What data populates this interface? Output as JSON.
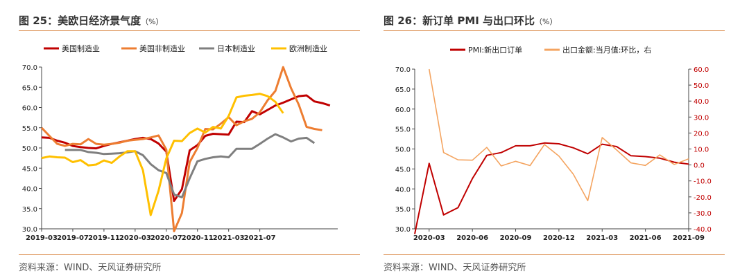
{
  "figures": [
    {
      "title": "图 25：美欧日经济景气度",
      "unit": "（%）",
      "source": "资料来源：WIND、天风证券研究所"
    },
    {
      "title": "图 26：新订单 PMI 与出口环比",
      "unit": "（%）",
      "source": "资料来源：WIND、天风证券研究所"
    }
  ],
  "colors": {
    "rule": "#d8833f",
    "us_mfg": "#c00000",
    "us_nonmfg": "#ed7d31",
    "jp_mfg": "#7f7f7f",
    "eu_mfg": "#ffc000",
    "pmi": "#c00000",
    "export": "#f4a460",
    "right_axis_text": "#c00000"
  },
  "chart_data": [
    {
      "type": "line",
      "x_tick_labels": [
        "2019-03",
        "2019-07",
        "2019-11",
        "2020-03",
        "2020-07",
        "2020-11",
        "2021-03",
        "2021-07"
      ],
      "x_start": "2019-03",
      "ylim": [
        30.0,
        70.0
      ],
      "y_ticks": [
        30.0,
        35.0,
        40.0,
        45.0,
        50.0,
        55.0,
        60.0,
        65.0,
        70.0
      ],
      "y_tick_labels": [
        "30.0",
        "35.0",
        "40.0",
        "45.0",
        "50.0",
        "55.0",
        "60.0",
        "65.0",
        "70.0"
      ],
      "legend": "top",
      "series": [
        {
          "name": "美国制造业",
          "color_key": "us_mfg",
          "start": "2019-03",
          "values": [
            52.6,
            52.5,
            51.8,
            51.3,
            50.5,
            50.2,
            50.0,
            49.9,
            50.5,
            51.0,
            51.4,
            51.8,
            52.2,
            52.5,
            52.2,
            51.1,
            49.1,
            36.9,
            39.8,
            49.4,
            50.7,
            53.0,
            53.5,
            53.4,
            53.3,
            56.5,
            56.4,
            59.1,
            58.3,
            59.4,
            60.5,
            61.2,
            62.0,
            62.8,
            63.0,
            61.5,
            61.1,
            60.5
          ]
        },
        {
          "name": "美国非制造业",
          "color_key": "us_nonmfg",
          "start": "2019-03",
          "values": [
            55.0,
            53.0,
            51.0,
            50.5,
            51.0,
            50.9,
            52.2,
            51.0,
            50.8,
            51.0,
            51.3,
            51.8,
            52.0,
            52.2,
            52.6,
            53.1,
            49.6,
            29.4,
            33.9,
            46.5,
            50.0,
            54.7,
            54.6,
            56.0,
            57.6,
            55.6,
            56.6,
            57.2,
            58.8,
            61.8,
            64.1,
            70.0,
            64.8,
            60.7,
            55.2,
            54.7,
            54.4
          ]
        },
        {
          "name": "日本制造业",
          "color_key": "jp_mfg",
          "start": "2019-06",
          "values": [
            49.5,
            49.5,
            49.5,
            49.0,
            48.8,
            48.5,
            48.6,
            48.7,
            48.9,
            49.2,
            48.2,
            46.0,
            44.5,
            43.8,
            38.5,
            37.8,
            42.5,
            46.7,
            47.3,
            47.7,
            47.9,
            47.7,
            49.8,
            49.8,
            49.8,
            51.0,
            52.3,
            53.4,
            52.6,
            51.6,
            52.3,
            52.5,
            51.2
          ]
        },
        {
          "name": "欧洲制造业",
          "color_key": "eu_mfg",
          "start": "2019-03",
          "values": [
            47.5,
            47.9,
            47.7,
            47.6,
            46.5,
            47.0,
            45.7,
            45.9,
            46.9,
            46.3,
            47.9,
            49.2,
            49.2,
            44.5,
            33.4,
            39.4,
            47.4,
            51.8,
            51.7,
            53.7,
            54.8,
            53.8,
            55.2,
            54.8,
            57.9,
            62.5,
            62.9,
            63.1,
            63.4,
            62.8,
            61.4,
            58.6
          ]
        }
      ]
    },
    {
      "type": "line",
      "x_tick_labels": [
        "2020-03",
        "2020-06",
        "2020-09",
        "2020-12",
        "2021-03",
        "2021-06",
        "2021-09"
      ],
      "x_start": "2020-02",
      "y_left": {
        "ylim": [
          30.0,
          70.0
        ],
        "ticks": [
          30.0,
          35.0,
          40.0,
          45.0,
          50.0,
          55.0,
          60.0,
          65.0,
          70.0
        ],
        "labels": [
          "30.0",
          "35.0",
          "40.0",
          "45.0",
          "50.0",
          "55.0",
          "60.0",
          "65.0",
          "70.0"
        ]
      },
      "y_right": {
        "ylim": [
          -40.0,
          60.0
        ],
        "ticks": [
          -40.0,
          -30.0,
          -20.0,
          -10.0,
          0.0,
          10.0,
          20.0,
          30.0,
          40.0,
          50.0,
          60.0
        ],
        "labels": [
          "-40.0",
          "-30.0",
          "-20.0",
          "-10.0",
          "0.0",
          "10.0",
          "20.0",
          "30.0",
          "40.0",
          "50.0",
          "60.0"
        ]
      },
      "legend": "top",
      "series": [
        {
          "name": "PMI:新出口订单",
          "axis": "left",
          "color_key": "pmi",
          "start": "2020-02",
          "values": [
            28.7,
            46.4,
            33.5,
            35.3,
            42.6,
            48.4,
            49.1,
            50.8,
            50.8,
            51.5,
            51.3,
            50.3,
            48.8,
            51.2,
            50.6,
            48.3,
            48.1,
            47.7,
            46.7,
            46.2
          ]
        },
        {
          "name": "出口金额:当月值:环比，右",
          "axis": "right",
          "color_key": "export",
          "start": "2020-03",
          "values": [
            60.0,
            7.8,
            3.2,
            3.0,
            11.0,
            -0.6,
            2.3,
            -0.4,
            12.8,
            5.6,
            -5.8,
            -22.4,
            17.2,
            9.4,
            1.3,
            -0.3,
            6.3,
            0.3,
            3.8
          ]
        }
      ]
    }
  ]
}
